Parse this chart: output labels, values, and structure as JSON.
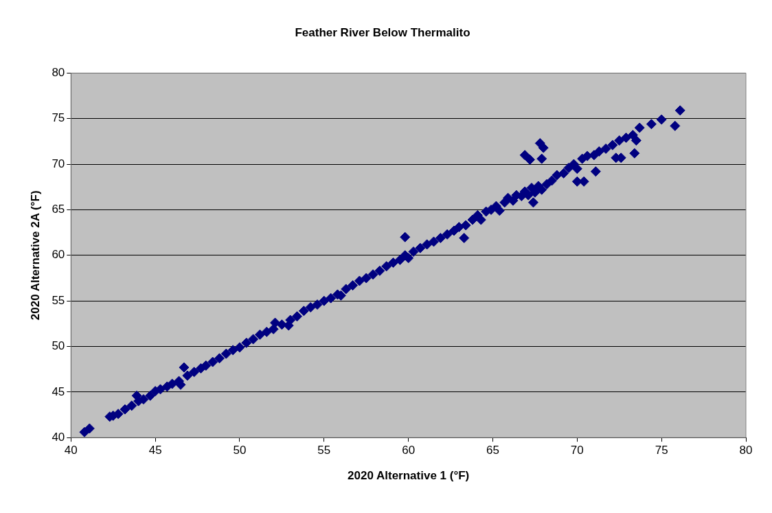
{
  "chart_data": {
    "type": "scatter",
    "title": "Feather River Below Thermalito",
    "xlabel": "2020 Alternative 1 (°F)",
    "ylabel": "2020 Alternative 2A (°F)",
    "xlim": [
      40,
      80
    ],
    "xticks": [
      40,
      45,
      50,
      55,
      60,
      65,
      70,
      75,
      80
    ],
    "ylim": [
      40,
      80
    ],
    "yticks": [
      40,
      45,
      50,
      55,
      60,
      65,
      70,
      75,
      80
    ],
    "grid": "y",
    "legend": false,
    "marker": "diamond",
    "series": [
      {
        "color": "#000080",
        "x": [
          40.8,
          41.1,
          42.3,
          42.5,
          42.8,
          43.2,
          43.6,
          43.9,
          44.0,
          44.3,
          44.7,
          45.0,
          45.3,
          45.7,
          46.0,
          46.4,
          46.5,
          46.7,
          46.9,
          47.3,
          47.7,
          48.0,
          48.4,
          48.8,
          49.2,
          49.6,
          50.0,
          50.4,
          50.8,
          51.2,
          51.6,
          52.0,
          52.1,
          52.5,
          52.9,
          53.0,
          53.4,
          53.8,
          54.2,
          54.6,
          55.0,
          55.4,
          55.8,
          56.0,
          56.3,
          56.7,
          57.1,
          57.5,
          57.9,
          58.3,
          58.7,
          59.1,
          59.5,
          59.8,
          59.8,
          60.0,
          60.3,
          60.7,
          61.1,
          61.5,
          61.9,
          62.3,
          62.7,
          63.0,
          63.3,
          63.4,
          63.8,
          64.1,
          64.3,
          64.6,
          64.9,
          65.2,
          65.4,
          65.7,
          65.9,
          66.2,
          66.4,
          66.7,
          66.9,
          66.9,
          67.1,
          67.2,
          67.3,
          67.4,
          67.5,
          67.7,
          67.8,
          67.9,
          67.9,
          68.0,
          68.2,
          68.5,
          68.8,
          69.2,
          69.5,
          69.8,
          70.0,
          70.0,
          70.3,
          70.4,
          70.6,
          71.0,
          71.1,
          71.3,
          71.7,
          72.1,
          72.3,
          72.5,
          72.6,
          72.9,
          73.3,
          73.4,
          73.5,
          73.7,
          74.4,
          75.0,
          75.8,
          76.1
        ],
        "values": [
          40.6,
          41.0,
          42.3,
          42.4,
          42.6,
          43.1,
          43.5,
          44.6,
          44.0,
          44.2,
          44.6,
          45.1,
          45.3,
          45.6,
          45.9,
          46.2,
          45.8,
          47.7,
          46.8,
          47.2,
          47.6,
          47.9,
          48.3,
          48.7,
          49.2,
          49.6,
          49.9,
          50.4,
          50.8,
          51.3,
          51.6,
          51.9,
          52.6,
          52.4,
          52.3,
          52.9,
          53.3,
          53.9,
          54.3,
          54.6,
          55.0,
          55.3,
          55.7,
          55.6,
          56.3,
          56.7,
          57.2,
          57.5,
          57.9,
          58.3,
          58.8,
          59.2,
          59.5,
          60.0,
          62.0,
          59.7,
          60.4,
          60.8,
          61.2,
          61.5,
          61.9,
          62.3,
          62.7,
          63.1,
          61.9,
          63.3,
          63.9,
          64.4,
          63.9,
          64.8,
          65.0,
          65.4,
          64.9,
          65.8,
          66.3,
          66.0,
          66.6,
          66.5,
          67.0,
          71.0,
          66.6,
          70.5,
          67.4,
          65.8,
          66.9,
          67.6,
          72.3,
          67.2,
          70.6,
          71.8,
          67.8,
          68.2,
          68.8,
          69.0,
          69.6,
          70.0,
          69.5,
          68.1,
          70.6,
          68.1,
          70.9,
          71.0,
          69.2,
          71.4,
          71.7,
          72.1,
          70.7,
          72.6,
          70.7,
          72.9,
          73.2,
          71.2,
          72.6,
          74.0,
          74.4,
          74.9,
          74.2,
          75.9
        ]
      }
    ]
  }
}
